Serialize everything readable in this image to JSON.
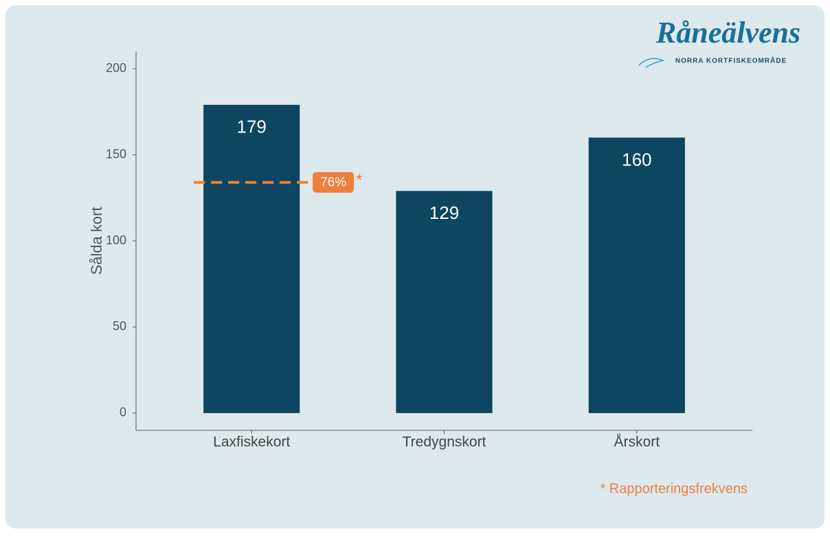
{
  "chart_data": {
    "type": "bar",
    "logo": {
      "title": "Råneälvens",
      "subtitle": "NORRA KORTFISKEOMRÅDE"
    },
    "y_label": "Sålda kort",
    "categories": [
      "Laxfiskekort",
      "Tredygnskort",
      "Årskort"
    ],
    "values": [
      179,
      129,
      160
    ],
    "color": "#0e4560",
    "ylim": [
      -10,
      210
    ],
    "yticks": [
      0,
      50,
      100,
      150,
      200
    ],
    "grid": false,
    "reference": {
      "value": 134,
      "label": "76%",
      "marker": "*",
      "color": "#f07f3c"
    },
    "footnote": "* Rapporteringsfrekvens"
  }
}
